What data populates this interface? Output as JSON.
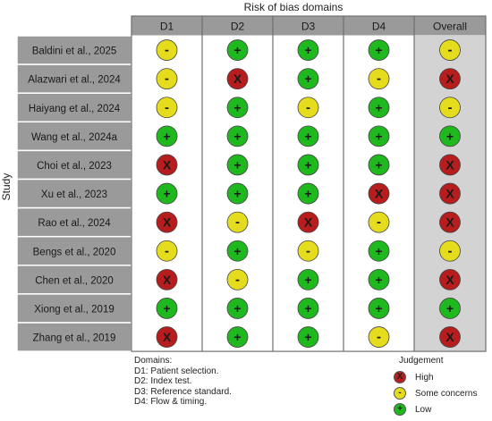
{
  "chart_data": {
    "type": "table",
    "title": "Risk of bias domains",
    "ylabel": "Study",
    "columns": [
      "D1",
      "D2",
      "D3",
      "D4",
      "Overall"
    ],
    "rows": [
      {
        "study": "Baldini et al., 2025",
        "ratings": [
          "some",
          "low",
          "low",
          "low",
          "some"
        ]
      },
      {
        "study": "Alazwari et al., 2024",
        "ratings": [
          "some",
          "high",
          "low",
          "some",
          "high"
        ]
      },
      {
        "study": "Haiyang et al., 2024",
        "ratings": [
          "some",
          "low",
          "some",
          "low",
          "some"
        ]
      },
      {
        "study": "Wang et al., 2024a",
        "ratings": [
          "low",
          "low",
          "low",
          "low",
          "low"
        ]
      },
      {
        "study": "Choi et al., 2023",
        "ratings": [
          "high",
          "low",
          "low",
          "low",
          "high"
        ]
      },
      {
        "study": "Xu et al., 2023",
        "ratings": [
          "low",
          "low",
          "low",
          "high",
          "high"
        ]
      },
      {
        "study": "Rao et al., 2024",
        "ratings": [
          "high",
          "some",
          "high",
          "some",
          "high"
        ]
      },
      {
        "study": "Bengs et al., 2020",
        "ratings": [
          "some",
          "low",
          "some",
          "low",
          "some"
        ]
      },
      {
        "study": "Chen et al., 2020",
        "ratings": [
          "high",
          "some",
          "low",
          "low",
          "high"
        ]
      },
      {
        "study": "Xiong et al., 2019",
        "ratings": [
          "low",
          "low",
          "low",
          "low",
          "low"
        ]
      },
      {
        "study": "Zhang et al., 2019",
        "ratings": [
          "high",
          "low",
          "low",
          "some",
          "high"
        ]
      }
    ],
    "judgement_levels": {
      "high": {
        "label": "High",
        "symbol": "X",
        "color": "#b81d1d"
      },
      "some": {
        "label": "Some concerns",
        "symbol": "-",
        "color": "#e6dc1e"
      },
      "low": {
        "label": "Low",
        "symbol": "+",
        "color": "#1fb81f"
      }
    },
    "domains_title": "Domains:",
    "domains": [
      "D1: Patient selection.",
      "D2: Index test.",
      "D3: Reference standard.",
      "D4: Flow & timing."
    ],
    "legend_title": "Judgement",
    "legend_order": [
      "high",
      "some",
      "low"
    ],
    "colors": {
      "header_bg": "#9a9a9a",
      "study_bg": "#9a9a9a",
      "overall_bg": "#d3d3d3",
      "grid": "#ffffff",
      "outline": "#3a3a3a"
    }
  }
}
